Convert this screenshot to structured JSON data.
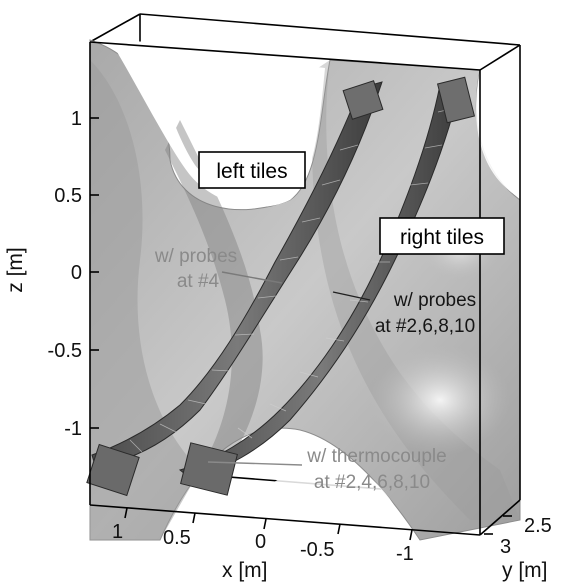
{
  "axes": {
    "z_title": "z [m]",
    "z_ticks": [
      "1",
      "0.5",
      "0",
      "-0.5",
      "-1"
    ],
    "x_title": "x [m]",
    "x_ticks": [
      "1",
      "0.5",
      "0",
      "-0.5",
      "-1"
    ],
    "y_title": "y [m]",
    "y_ticks": [
      "2.5",
      "3"
    ]
  },
  "labels": {
    "left_tiles": "left tiles",
    "right_tiles": "right tiles",
    "probes_4_line1": "w/ probes",
    "probes_4_line2": "at #4",
    "probes_even_line1": "w/ probes",
    "probes_even_line2": "at #2,6,8,10",
    "thermo_line1": "w/ thermocouple",
    "thermo_line2": "at #2,4,6,8,10"
  },
  "colors": {
    "surface": "#b4b4b4",
    "surface_dark": "#8c8c8c",
    "tile": "#5a5a5a",
    "box_edge": "#000000"
  }
}
